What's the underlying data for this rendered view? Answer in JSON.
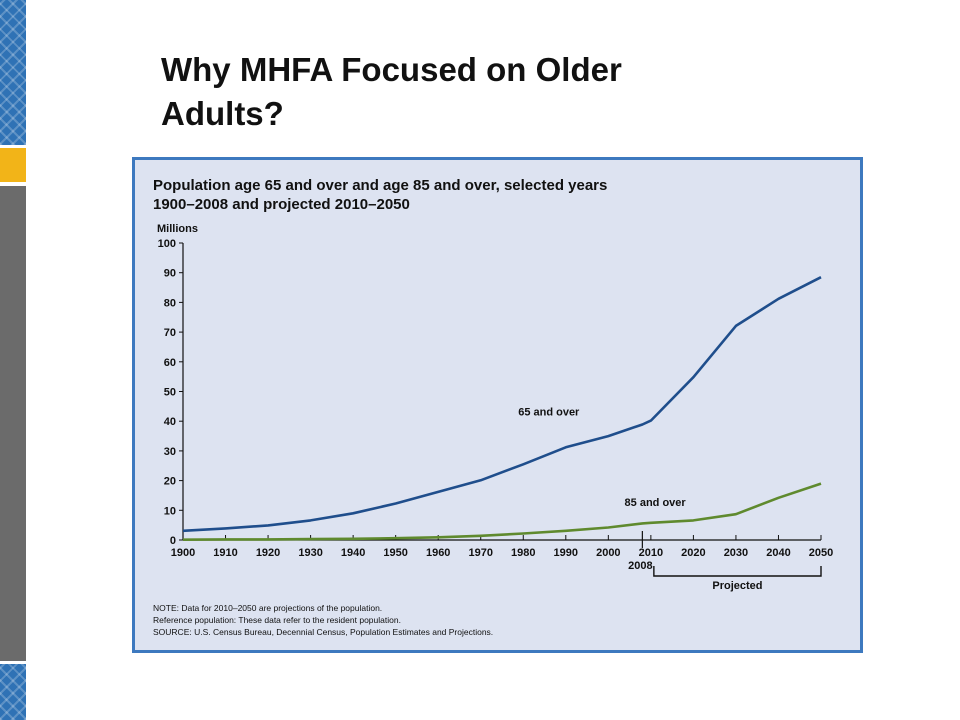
{
  "slide": {
    "title_line1": "Why MHFA Focused on Older",
    "title_line2": "Adults?"
  },
  "colors": {
    "series_65": "#1f4e8c",
    "series_85": "#5f8a2e",
    "panel_bg": "#dde3f1",
    "panel_border": "#3d79bf",
    "sidebar_blue": "#2f72b5",
    "sidebar_gold": "#f2b418",
    "sidebar_gray": "#6b6b6b"
  },
  "chart_data": {
    "type": "line",
    "title_line1": "Population age 65 and over and age 85 and over, selected years",
    "title_line2": "1900–2008 and projected 2010–2050",
    "ylabel": "Millions",
    "ylim": [
      0,
      100
    ],
    "yticks": [
      0,
      10,
      20,
      30,
      40,
      50,
      60,
      70,
      80,
      90,
      100
    ],
    "xlim": [
      1900,
      2050
    ],
    "xticks": [
      1900,
      1910,
      1920,
      1930,
      1940,
      1950,
      1960,
      1970,
      1980,
      1990,
      2000,
      2010,
      2020,
      2030,
      2040,
      2050
    ],
    "x_marker": {
      "x": 2008,
      "label": "2008"
    },
    "projection_bracket": {
      "from": 2010,
      "to": 2050,
      "label": "Projected"
    },
    "grid": false,
    "legend": "inline labels",
    "x": [
      1900,
      1910,
      1920,
      1930,
      1940,
      1950,
      1960,
      1970,
      1980,
      1990,
      2000,
      2008,
      2010,
      2020,
      2030,
      2040,
      2050
    ],
    "series": [
      {
        "name": "65 and over",
        "label_at": {
          "x": 1986,
          "y": 42
        },
        "values": [
          3.1,
          3.9,
          4.9,
          6.6,
          9.0,
          12.3,
          16.2,
          20.1,
          25.5,
          31.2,
          35.0,
          38.9,
          40.2,
          54.8,
          72.1,
          81.2,
          88.5
        ]
      },
      {
        "name": "85 and over",
        "label_at": {
          "x": 2011,
          "y": 11.5
        },
        "values": [
          0.1,
          0.2,
          0.2,
          0.3,
          0.4,
          0.6,
          0.9,
          1.4,
          2.2,
          3.1,
          4.2,
          5.6,
          5.8,
          6.6,
          8.7,
          14.2,
          19.0
        ]
      }
    ],
    "notes": [
      "NOTE: Data for 2010–2050 are projections of the population.",
      "Reference population: These data refer to the resident population.",
      "SOURCE: U.S. Census Bureau, Decennial Census, Population Estimates and Projections."
    ]
  }
}
